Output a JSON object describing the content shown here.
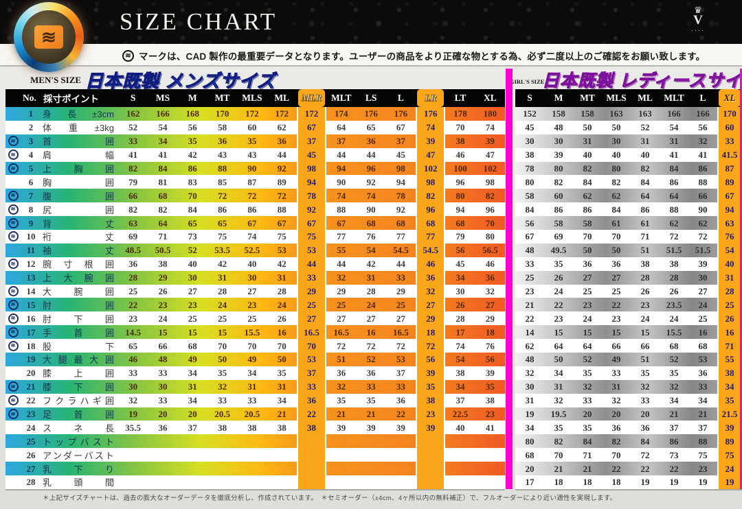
{
  "header": {
    "title": "SIZE CHART",
    "note": "マークは、CAD 製作の最重要データとなります。ユーザーの商品をより正確な物とする為、必ず二度以上のご確認をお願い致します。",
    "crown_letter": "V",
    "crown_dots": "····",
    "logo_mark_glyph": "≋",
    "note_mark_glyph": "≋"
  },
  "sections": {
    "mens_label": "MEN'S SIZE",
    "mens_title": "日本既製 メンズサイズ",
    "girls_label": "GIRL'S SIZE",
    "ladies_title": "日本既製 レディースサイズ"
  },
  "footer": {
    "note": "＊上記サイズチャートは、過去の膨大なオーダーデータを徹底分析し、作成されています。　＊セミオーダー（±4cm、4ヶ所以内の無料補正）で、フルオーダーにより近い適性を実現します。"
  },
  "colors": {
    "band_orange": "#faa61a",
    "divider_magenta": "#ff00d2",
    "mens_title_blue": "#2d53e4",
    "ladies_title_pink": "#ff3bee",
    "header_black": "#050505"
  },
  "men": {
    "no_header": "No.",
    "point_header": "採寸ポイント",
    "columns": [
      "S",
      "MS",
      "M",
      "MT",
      "MLS",
      "ML",
      "MLR",
      "MLT",
      "LS",
      "L",
      "LR",
      "LT",
      "XL"
    ],
    "highlight_columns": [
      "MLR",
      "LR"
    ],
    "rows": [
      {
        "no": 1,
        "mark": false,
        "label": "身長±3cm",
        "values": [
          162,
          166,
          168,
          170,
          172,
          172,
          172,
          174,
          176,
          176,
          176,
          178,
          180
        ]
      },
      {
        "no": 2,
        "mark": false,
        "label": "体重±3kg",
        "values": [
          52,
          54,
          56,
          58,
          60,
          62,
          67,
          64,
          65,
          67,
          74,
          70,
          74
        ]
      },
      {
        "no": 3,
        "mark": true,
        "label": "首囲",
        "values": [
          33,
          34,
          35,
          36,
          35,
          36,
          37,
          37,
          36,
          37,
          39,
          38,
          39
        ]
      },
      {
        "no": 4,
        "mark": true,
        "label": "肩幅",
        "values": [
          41,
          41,
          42,
          43,
          43,
          44,
          45,
          44,
          44,
          45,
          47,
          46,
          47
        ]
      },
      {
        "no": 5,
        "mark": true,
        "label": "上胸囲",
        "values": [
          82,
          84,
          86,
          88,
          90,
          92,
          98,
          94,
          96,
          98,
          102,
          100,
          102
        ]
      },
      {
        "no": 6,
        "mark": false,
        "label": "胸囲",
        "values": [
          79,
          81,
          83,
          85,
          87,
          89,
          94,
          90,
          92,
          94,
          98,
          96,
          98
        ]
      },
      {
        "no": 7,
        "mark": true,
        "label": "腹囲",
        "values": [
          66,
          68,
          70,
          72,
          72,
          72,
          78,
          74,
          74,
          78,
          82,
          80,
          82
        ]
      },
      {
        "no": 8,
        "mark": true,
        "label": "尻囲",
        "values": [
          82,
          82,
          84,
          86,
          86,
          88,
          92,
          88,
          90,
          92,
          96,
          94,
          96
        ]
      },
      {
        "no": 9,
        "mark": true,
        "label": "背丈",
        "values": [
          63,
          64,
          65,
          65,
          67,
          67,
          67,
          67,
          68,
          68,
          68,
          68,
          70
        ]
      },
      {
        "no": 10,
        "mark": true,
        "label": "裄丈",
        "values": [
          69,
          71,
          73,
          75,
          74,
          75,
          75,
          77,
          76,
          77,
          77,
          79,
          80
        ]
      },
      {
        "no": 11,
        "mark": false,
        "label": "袖丈",
        "values": [
          48.5,
          50.5,
          52,
          53.5,
          52.5,
          53,
          53,
          55,
          54,
          54.5,
          54.5,
          56,
          56.5
        ]
      },
      {
        "no": 12,
        "mark": true,
        "label": "腕寸根囲",
        "values": [
          36,
          38,
          40,
          42,
          40,
          42,
          44,
          44,
          42,
          44,
          46,
          45,
          46
        ]
      },
      {
        "no": 13,
        "mark": false,
        "label": "上大腕囲",
        "values": [
          28,
          29,
          30,
          31,
          30,
          31,
          33,
          32,
          31,
          33,
          36,
          34,
          36
        ]
      },
      {
        "no": 14,
        "mark": true,
        "label": "大腕囲",
        "values": [
          25,
          26,
          27,
          28,
          27,
          28,
          29,
          29,
          28,
          29,
          32,
          30,
          32
        ]
      },
      {
        "no": 15,
        "mark": true,
        "label": "肘囲",
        "values": [
          22,
          23,
          23,
          24,
          23,
          24,
          25,
          25,
          24,
          25,
          27,
          26,
          27
        ]
      },
      {
        "no": 16,
        "mark": true,
        "label": "肘下囲",
        "values": [
          23,
          24,
          25,
          25,
          25,
          26,
          27,
          27,
          27,
          27,
          29,
          28,
          29
        ]
      },
      {
        "no": 17,
        "mark": true,
        "label": "手首囲",
        "values": [
          14.5,
          15,
          15,
          15,
          15.5,
          16,
          16.5,
          16.5,
          16,
          16.5,
          18,
          17,
          18
        ]
      },
      {
        "no": 18,
        "mark": true,
        "label": "股下",
        "values": [
          65,
          66,
          68,
          70,
          70,
          70,
          70,
          72,
          72,
          72,
          72,
          74,
          76
        ]
      },
      {
        "no": 19,
        "mark": false,
        "label": "大腿最大囲",
        "values": [
          46,
          48,
          49,
          50,
          49,
          50,
          53,
          51,
          52,
          53,
          56,
          54,
          56
        ]
      },
      {
        "no": 20,
        "mark": false,
        "label": "膝上囲",
        "values": [
          33,
          33,
          34,
          35,
          34,
          35,
          37,
          36,
          36,
          37,
          39,
          38,
          39
        ]
      },
      {
        "no": 21,
        "mark": true,
        "label": "膝下囲",
        "values": [
          30,
          30,
          31,
          32,
          31,
          31,
          33,
          32,
          33,
          33,
          35,
          34,
          35
        ]
      },
      {
        "no": 22,
        "mark": true,
        "label": "フクラハギ囲",
        "values": [
          32,
          33,
          34,
          33,
          33,
          34,
          36,
          35,
          35,
          36,
          38,
          37,
          38
        ]
      },
      {
        "no": 23,
        "mark": true,
        "label": "足首囲",
        "values": [
          19,
          20,
          20,
          20.5,
          20.5,
          21,
          22,
          21,
          21,
          22,
          23,
          22.5,
          23
        ]
      },
      {
        "no": 24,
        "mark": false,
        "label": "スネ長",
        "values": [
          35.5,
          36,
          37,
          38,
          38,
          38,
          38,
          39,
          39,
          39,
          39,
          40,
          41
        ]
      },
      {
        "no": 25,
        "mark": false,
        "label": "トップバスト",
        "values": [
          "",
          "",
          "",
          "",
          "",
          "",
          "",
          "",
          "",
          "",
          "",
          "",
          ""
        ]
      },
      {
        "no": 26,
        "mark": false,
        "label": "アンダーバスト",
        "values": [
          "",
          "",
          "",
          "",
          "",
          "",
          "",
          "",
          "",
          "",
          "",
          "",
          ""
        ]
      },
      {
        "no": 27,
        "mark": false,
        "label": "乳下り",
        "values": [
          "",
          "",
          "",
          "",
          "",
          "",
          "",
          "",
          "",
          "",
          "",
          "",
          ""
        ]
      },
      {
        "no": 28,
        "mark": false,
        "label": "乳頭間",
        "values": [
          "",
          "",
          "",
          "",
          "",
          "",
          "",
          "",
          "",
          "",
          "",
          "",
          ""
        ]
      }
    ]
  },
  "women": {
    "columns": [
      "S",
      "M",
      "MT",
      "MLS",
      "ML",
      "MLT",
      "L",
      "XL"
    ],
    "highlight_columns": [
      "XL"
    ],
    "rows": [
      {
        "no": 1,
        "values": [
          152,
          158,
          158,
          163,
          163,
          166,
          166,
          170
        ]
      },
      {
        "no": 2,
        "values": [
          45,
          48,
          50,
          50,
          52,
          54,
          56,
          60
        ]
      },
      {
        "no": 3,
        "values": [
          30,
          30,
          31,
          30,
          31,
          31,
          32,
          33
        ]
      },
      {
        "no": 4,
        "values": [
          38,
          39,
          40,
          40,
          40,
          41,
          41,
          41.5
        ]
      },
      {
        "no": 5,
        "values": [
          78,
          80,
          82,
          80,
          82,
          84,
          86,
          87
        ]
      },
      {
        "no": 6,
        "values": [
          80,
          82,
          84,
          82,
          84,
          86,
          88,
          89
        ]
      },
      {
        "no": 7,
        "values": [
          58,
          60,
          62,
          62,
          64,
          64,
          66,
          67
        ]
      },
      {
        "no": 8,
        "values": [
          84,
          86,
          86,
          84,
          86,
          88,
          90,
          94
        ]
      },
      {
        "no": 9,
        "values": [
          56,
          58,
          58,
          61,
          61,
          62,
          62,
          63
        ]
      },
      {
        "no": 10,
        "values": [
          67,
          69,
          70,
          70,
          71,
          72,
          72,
          76
        ]
      },
      {
        "no": 11,
        "values": [
          48,
          49.5,
          50,
          50,
          51,
          51.5,
          51.5,
          54
        ]
      },
      {
        "no": 12,
        "values": [
          33,
          35,
          36,
          36,
          38,
          38,
          39,
          40
        ]
      },
      {
        "no": 13,
        "values": [
          25,
          26,
          27,
          27,
          28,
          28,
          30,
          31
        ]
      },
      {
        "no": 14,
        "values": [
          23,
          24,
          25,
          25,
          26,
          26,
          27,
          28
        ]
      },
      {
        "no": 15,
        "values": [
          21,
          22,
          23,
          22,
          23,
          23.5,
          24,
          25
        ]
      },
      {
        "no": 16,
        "values": [
          22,
          23,
          24,
          23,
          24,
          24,
          25,
          26
        ]
      },
      {
        "no": 17,
        "values": [
          14,
          15,
          15,
          15,
          15,
          15.5,
          16,
          16
        ]
      },
      {
        "no": 18,
        "values": [
          62,
          64,
          64,
          66,
          66,
          68,
          68,
          71
        ]
      },
      {
        "no": 19,
        "values": [
          48,
          50,
          52,
          49,
          51,
          52,
          53,
          55
        ]
      },
      {
        "no": 20,
        "values": [
          32,
          34,
          35,
          33,
          35,
          35,
          36,
          38
        ]
      },
      {
        "no": 21,
        "values": [
          30,
          31,
          32,
          31,
          32,
          32,
          33,
          34
        ]
      },
      {
        "no": 22,
        "values": [
          31,
          32,
          33,
          32,
          33,
          34,
          34,
          35
        ]
      },
      {
        "no": 23,
        "values": [
          19,
          19.5,
          20,
          20,
          20,
          21,
          21,
          21.5
        ]
      },
      {
        "no": 24,
        "values": [
          34,
          35,
          35,
          36,
          36,
          37,
          37,
          39
        ]
      },
      {
        "no": 25,
        "values": [
          80,
          82,
          84,
          82,
          84,
          86,
          88,
          89
        ]
      },
      {
        "no": 26,
        "values": [
          68,
          70,
          71,
          70,
          72,
          73,
          75,
          75
        ]
      },
      {
        "no": 27,
        "values": [
          20,
          21,
          21,
          22,
          22,
          22,
          23,
          24
        ]
      },
      {
        "no": 28,
        "values": [
          17,
          18,
          18,
          18,
          19,
          19,
          19,
          19
        ]
      }
    ]
  }
}
